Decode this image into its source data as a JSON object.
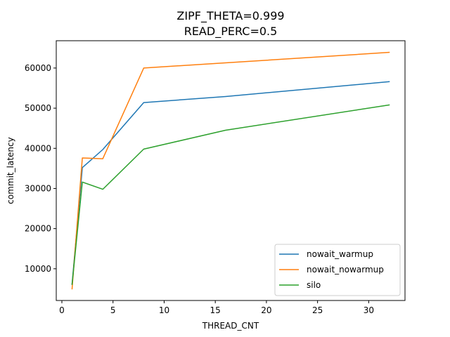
{
  "chart_data": {
    "type": "line",
    "title_lines": [
      "ZIPF_THETA=0.999",
      "READ_PERC=0.5"
    ],
    "xlabel": "THREAD_CNT",
    "ylabel": "commit_latency",
    "xlim": [
      -0.55,
      33.55
    ],
    "ylim": [
      2100,
      66800
    ],
    "xticks": [
      0,
      5,
      10,
      15,
      20,
      25,
      30
    ],
    "yticks": [
      10000,
      20000,
      30000,
      40000,
      50000,
      60000
    ],
    "grid": false,
    "legend_position": "lower-right",
    "series": [
      {
        "name": "nowait_warmup",
        "color": "#1f77b4",
        "x": [
          1,
          2,
          4,
          8,
          16,
          32
        ],
        "y": [
          6200,
          35200,
          39700,
          51400,
          52900,
          56600
        ]
      },
      {
        "name": "nowait_nowarmup",
        "color": "#ff7f0e",
        "x": [
          1,
          2,
          4,
          8,
          16,
          32
        ],
        "y": [
          5000,
          37600,
          37400,
          60000,
          61300,
          63900
        ]
      },
      {
        "name": "silo",
        "color": "#2ca02c",
        "x": [
          1,
          2,
          4,
          8,
          16,
          32
        ],
        "y": [
          6100,
          31600,
          29800,
          39800,
          44500,
          50800
        ]
      }
    ]
  }
}
